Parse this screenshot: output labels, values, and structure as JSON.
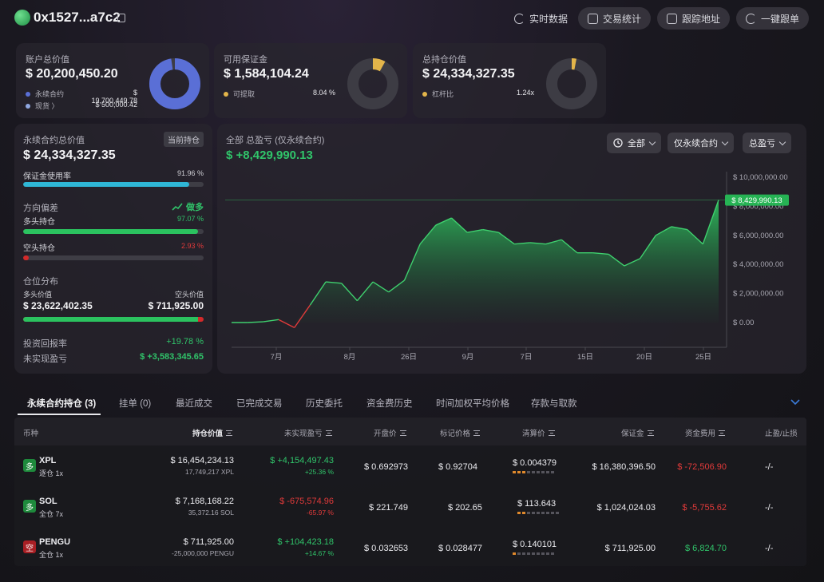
{
  "header": {
    "address": "0x1527...a7c2",
    "actions": [
      {
        "label": "实时数据",
        "icon": "refresh-icon"
      },
      {
        "label": "交易统计",
        "icon": "stats-icon"
      },
      {
        "label": "跟踪地址",
        "icon": "monitor-icon"
      },
      {
        "label": "一键跟单",
        "icon": "copy-trade-icon"
      }
    ]
  },
  "summary": {
    "account": {
      "label": "账户总价值",
      "value": "$ 20,200,450.20",
      "rows": [
        {
          "label": "永续合约",
          "value": "$ 19,700,449.78",
          "color": "#5a6fd6"
        },
        {
          "label": "现货 〉",
          "value": "$ 500,000.42",
          "color": "#8fa7e0"
        }
      ],
      "donut_fraction": 0.975
    },
    "margin": {
      "label": "可用保证金",
      "value": "$ 1,584,104.24",
      "row_label": "可提取",
      "row_value": "8.04 %",
      "color": "#e3b54a",
      "donut_fraction": 0.0804
    },
    "position": {
      "label": "总持仓价值",
      "value": "$ 24,334,327.35",
      "row_label": "杠杆比",
      "row_value": "1.24x",
      "color": "#e3b54a",
      "donut_fraction": 0.03
    }
  },
  "perp": {
    "title": "永续合约总价值",
    "tag": "当前持仓",
    "value": "$ 24,334,327.35",
    "margin_usage_label": "保证金使用率",
    "margin_usage_value": "91.96 %",
    "margin_usage": 0.9196,
    "direction_label": "方向偏差",
    "direction_value": "做多",
    "long_label": "多头持仓",
    "long_pct_text": "97.07 %",
    "long_pct": 0.9707,
    "short_label": "空头持仓",
    "short_pct_text": "2.93 %",
    "short_pct": 0.0293,
    "distribution_label": "仓位分布",
    "long_value_label": "多头价值",
    "short_value_label": "空头价值",
    "long_value": "$ 23,622,402.35",
    "short_value": "$ 711,925.00",
    "roi_label": "投资回报率",
    "roi_value": "+19.78 %",
    "upnl_label": "未实现盈亏",
    "upnl_value": "$ +3,583,345.65"
  },
  "pnl_panel": {
    "title": "全部 总盈亏 (仅永续合约)",
    "value": "$ +8,429,990.13",
    "filters": [
      "全部",
      "仅永续合约",
      "总盈亏"
    ]
  },
  "chart_data": {
    "type": "area",
    "y_ticks": [
      "$ 10,000,000.00",
      "$ 8,000,000.00",
      "$ 6,000,000.00",
      "$ 4,000,000.00",
      "$ 2,000,000.00",
      "$ 0.00"
    ],
    "ylim": [
      -1000000,
      10000000
    ],
    "x_ticks": [
      "7月",
      "8月",
      "26日",
      "9月",
      "7日",
      "15日",
      "20日",
      "25日"
    ],
    "current_label": "$ 8,429,990.13",
    "values": [
      0,
      0,
      50000,
      200000,
      -350000,
      1200000,
      2800000,
      2700000,
      1500000,
      2800000,
      2100000,
      2900000,
      5400000,
      6700000,
      7200000,
      6200000,
      6400000,
      6200000,
      5400000,
      5500000,
      5400000,
      5700000,
      4800000,
      4800000,
      4700000,
      3900000,
      4400000,
      6000000,
      6600000,
      6400000,
      5400000,
      8430000
    ]
  },
  "tabs": [
    "永续合约持仓 (3)",
    "挂单 (0)",
    "最近成交",
    "已完成交易",
    "历史委托",
    "资金费历史",
    "时间加权平均价格",
    "存款与取款"
  ],
  "table": {
    "columns": [
      "币种",
      "持仓价值",
      "未实现盈亏",
      "开盘价",
      "标记价格",
      "清算价",
      "保证金",
      "资金费用",
      "止盈/止损"
    ],
    "rows": [
      {
        "badge": "多",
        "badge_color": "#1e8a3c",
        "symbol": "XPL",
        "mode": "逐仓 1x",
        "value": "$ 16,454,234.13",
        "size": "17,749,217 XPL",
        "pnl": "$ +4,154,497.43",
        "pnl_pct": "+25.36 %",
        "pnl_color": "#30c46a",
        "open": "$ 0.692973",
        "mark": "$ 0.92704",
        "liq": "$ 0.004379",
        "liq_level": 3,
        "margin": "$ 16,380,396.50",
        "funding": "$ -72,506.90",
        "funding_color": "#e23a3a",
        "tpsl": "-/-"
      },
      {
        "badge": "多",
        "badge_color": "#1e8a3c",
        "symbol": "SOL",
        "mode": "全仓 7x",
        "value": "$ 7,168,168.22",
        "size": "35,372.16 SOL",
        "pnl": "$ -675,574.96",
        "pnl_pct": "-65.97 %",
        "pnl_color": "#e23a3a",
        "open": "$ 221.749",
        "mark": "$ 202.65",
        "liq": "$ 113.643",
        "liq_level": 2,
        "margin": "$ 1,024,024.03",
        "funding": "$ -5,755.62",
        "funding_color": "#e23a3a",
        "tpsl": "-/-"
      },
      {
        "badge": "空",
        "badge_color": "#a81f24",
        "symbol": "PENGU",
        "mode": "全仓 1x",
        "value": "$ 711,925.00",
        "size": "-25,000,000 PENGU",
        "pnl": "$ +104,423.18",
        "pnl_pct": "+14.67 %",
        "pnl_color": "#30c46a",
        "open": "$ 0.032653",
        "mark": "$ 0.028477",
        "liq": "$ 0.140101",
        "liq_level": 1,
        "margin": "$ 711,925.00",
        "funding": "$ 6,824.70",
        "funding_color": "#30c46a",
        "tpsl": "-/-"
      }
    ]
  }
}
